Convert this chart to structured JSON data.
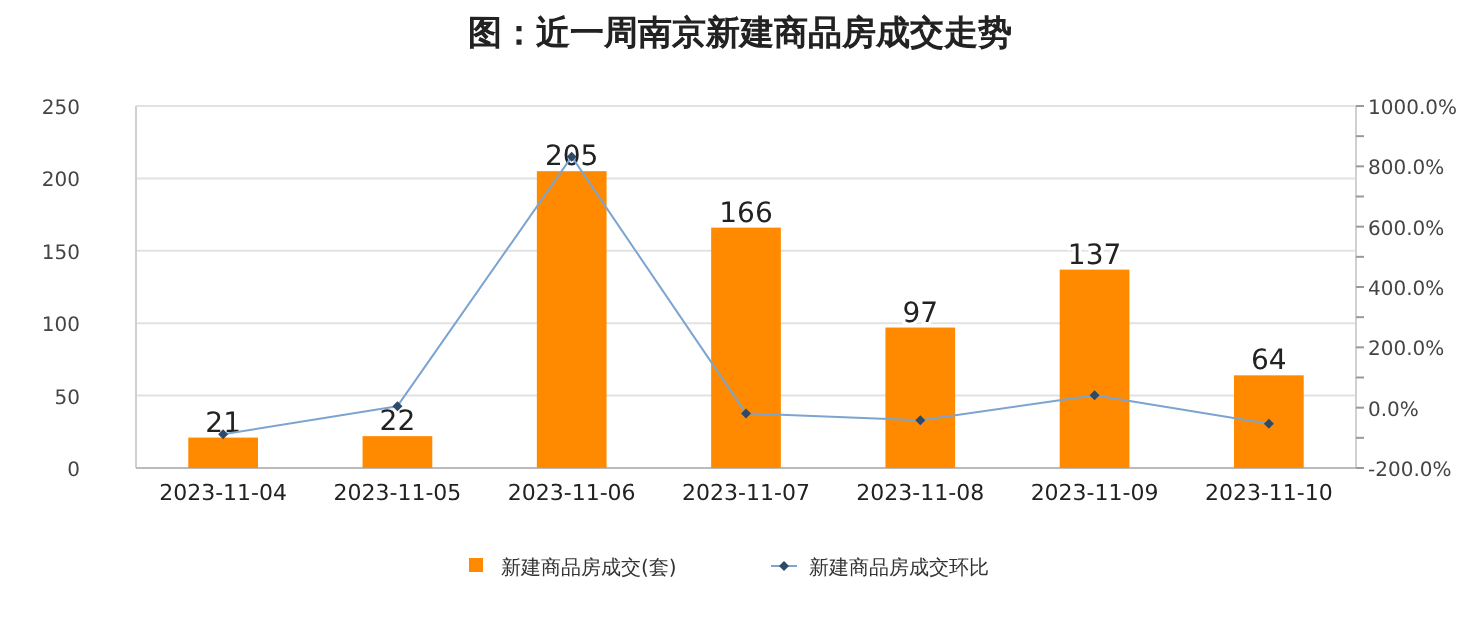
{
  "chart_data": {
    "type": "bar",
    "title": "图：近一周南京新建商品房成交走势",
    "categories": [
      "2023-11-04",
      "2023-11-05",
      "2023-11-06",
      "2023-11-07",
      "2023-11-08",
      "2023-11-09",
      "2023-11-10"
    ],
    "series": [
      {
        "name": "新建商品房成交(套)",
        "color": "#ff8a00",
        "values": [
          21,
          22,
          205,
          166,
          97,
          137,
          64
        ],
        "value_labels": [
          "21",
          "22",
          "205",
          "166",
          "97",
          "137",
          "64"
        ]
      },
      {
        "name": "新建商品房成交环比",
        "type": "line",
        "axis": "y2",
        "color": "#7ba4d0",
        "marker": "diamond",
        "values": [
          -88,
          5,
          832,
          -19,
          -42,
          41,
          -53
        ]
      }
    ],
    "ylim": [
      0,
      250
    ],
    "yticks": [
      0,
      50,
      100,
      150,
      200,
      250
    ],
    "y2lim": [
      -200,
      1000
    ],
    "y2ticks": [
      {
        "value": -200,
        "label": "-200.0%"
      },
      {
        "value": -100,
        "label": null
      },
      {
        "value": 0,
        "label": "0.0%"
      },
      {
        "value": 100,
        "label": null
      },
      {
        "value": 200,
        "label": "200.0%"
      },
      {
        "value": 300,
        "label": null
      },
      {
        "value": 400,
        "label": "400.0%"
      },
      {
        "value": 500,
        "label": null
      },
      {
        "value": 600,
        "label": "600.0%"
      },
      {
        "value": 700,
        "label": null
      },
      {
        "value": 800,
        "label": "800.0%"
      },
      {
        "value": 900,
        "label": null
      },
      {
        "value": 1000,
        "label": "1000.0%"
      }
    ],
    "grid": "y",
    "legend": "bottom"
  }
}
